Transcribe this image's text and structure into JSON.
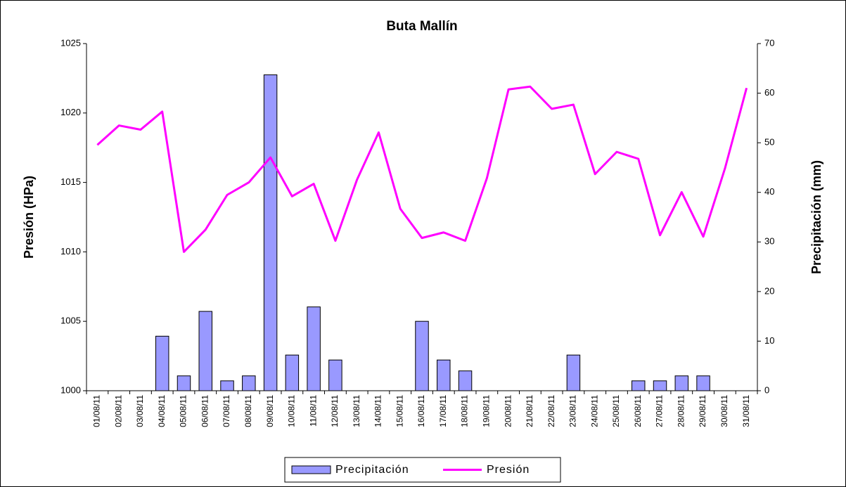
{
  "chart_data": {
    "type": "bar",
    "title": "Buta Mallín",
    "ylabel": "Presión (HPa)",
    "y2label": "Precipitación (mm)",
    "categories": [
      "01/08/11",
      "02/08/11",
      "03/08/11",
      "04/08/11",
      "05/08/11",
      "06/08/11",
      "07/08/11",
      "08/08/11",
      "09/08/11",
      "10/08/11",
      "11/08/11",
      "12/08/11",
      "13/08/11",
      "14/08/11",
      "15/08/11",
      "16/08/11",
      "17/08/11",
      "18/08/11",
      "19/08/11",
      "20/08/11",
      "21/08/11",
      "22/08/11",
      "23/08/11",
      "24/08/11",
      "25/08/11",
      "26/08/11",
      "27/08/11",
      "28/08/11",
      "29/08/11",
      "30/08/11",
      "31/08/11"
    ],
    "series": [
      {
        "name": "Precipitación",
        "type": "bar",
        "axis": "y2",
        "color": "#9999ff",
        "values": [
          0,
          0,
          0,
          11,
          3,
          16,
          2,
          3,
          63.7,
          7.2,
          16.9,
          6.2,
          0,
          0,
          0,
          14,
          6.2,
          4,
          0,
          0,
          0,
          0,
          7.2,
          0,
          0,
          2,
          2,
          3,
          3,
          0,
          0
        ]
      },
      {
        "name": "Presión",
        "type": "line",
        "axis": "y",
        "color": "#ff00ff",
        "values": [
          1017.7,
          1019.1,
          1018.8,
          1020.1,
          1010.0,
          1011.6,
          1014.1,
          1015.0,
          1016.8,
          1014.0,
          1014.9,
          1010.8,
          1015.2,
          1018.6,
          1013.1,
          1011.0,
          1011.4,
          1010.8,
          1015.3,
          1021.7,
          1021.9,
          1020.3,
          1020.6,
          1015.6,
          1017.2,
          1016.7,
          1011.2,
          1014.3,
          1011.1,
          1016.0,
          1021.8
        ]
      }
    ],
    "ylim": [
      1000,
      1025
    ],
    "yticks": [
      1000,
      1005,
      1010,
      1015,
      1020,
      1025
    ],
    "y2lim": [
      0,
      70
    ],
    "y2ticks": [
      0,
      10,
      20,
      30,
      40,
      50,
      60,
      70
    ]
  }
}
